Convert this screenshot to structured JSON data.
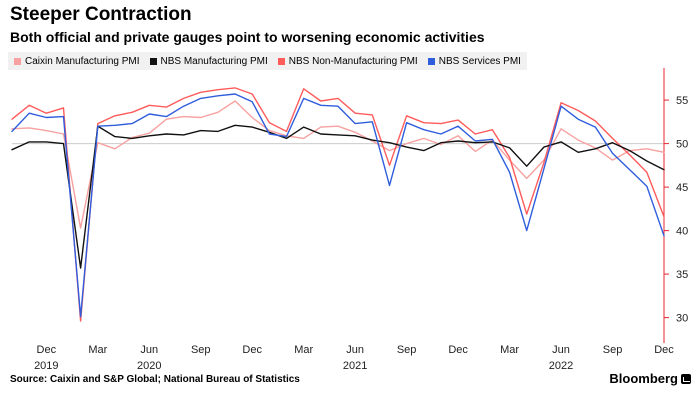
{
  "header": {
    "title": "Steeper Contraction",
    "subtitle": "Both official and private gauges point to worsening economic activities"
  },
  "footer": {
    "source": "Source: Caixin and S&P Global; National Bureau of Statistics",
    "brand": "Bloomberg"
  },
  "colors": {
    "caixin_manufacturing": "#f7a1a0",
    "nbs_manufacturing": "#111111",
    "nbs_non_manufacturing": "#ff5b5b",
    "nbs_services": "#2f5ddc",
    "axis": "#e8262f",
    "threshold_line": "#cccccc"
  },
  "chart_data": {
    "type": "line",
    "title": "Steeper Contraction",
    "subtitle": "Both official and private gauges point to worsening economic activities",
    "xlabel": "",
    "ylabel": "",
    "ylim": [
      28,
      58
    ],
    "y_ticks": [
      30,
      35,
      40,
      45,
      50,
      55
    ],
    "y_axis_position": "right",
    "grid": false,
    "legend_position": "top-left",
    "x": [
      "2019-10",
      "2019-11",
      "2019-12",
      "2020-01",
      "2020-02",
      "2020-03",
      "2020-04",
      "2020-05",
      "2020-06",
      "2020-07",
      "2020-08",
      "2020-09",
      "2020-10",
      "2020-11",
      "2020-12",
      "2021-01",
      "2021-02",
      "2021-03",
      "2021-04",
      "2021-05",
      "2021-06",
      "2021-07",
      "2021-08",
      "2021-09",
      "2021-10",
      "2021-11",
      "2021-12",
      "2022-01",
      "2022-02",
      "2022-03",
      "2022-04",
      "2022-05",
      "2022-06",
      "2022-07",
      "2022-08",
      "2022-09",
      "2022-10",
      "2022-11",
      "2022-12"
    ],
    "x_tick_labels": [
      {
        "month": "Dec",
        "year": "2019",
        "at": "2019-12"
      },
      {
        "month": "Mar",
        "year": "",
        "at": "2020-03"
      },
      {
        "month": "Jun",
        "year": "2020",
        "at": "2020-06"
      },
      {
        "month": "Sep",
        "year": "",
        "at": "2020-09"
      },
      {
        "month": "Dec",
        "year": "",
        "at": "2020-12"
      },
      {
        "month": "Mar",
        "year": "",
        "at": "2021-03"
      },
      {
        "month": "Jun",
        "year": "2021",
        "at": "2021-06"
      },
      {
        "month": "Sep",
        "year": "",
        "at": "2021-09"
      },
      {
        "month": "Dec",
        "year": "",
        "at": "2021-12"
      },
      {
        "month": "Mar",
        "year": "",
        "at": "2022-03"
      },
      {
        "month": "Jun",
        "year": "2022",
        "at": "2022-06"
      },
      {
        "month": "Sep",
        "year": "",
        "at": "2022-09"
      },
      {
        "month": "Dec",
        "year": "",
        "at": "2022-12"
      }
    ],
    "series": [
      {
        "name": "Caixin Manufacturing PMI",
        "color": "#f7a1a0",
        "values": [
          51.7,
          51.8,
          51.5,
          51.1,
          40.3,
          50.1,
          49.4,
          50.7,
          51.2,
          52.8,
          53.1,
          53.0,
          53.6,
          54.9,
          53.0,
          51.5,
          50.9,
          50.6,
          51.9,
          52.0,
          51.3,
          50.3,
          49.2,
          50.0,
          50.6,
          49.9,
          50.9,
          49.1,
          50.4,
          48.1,
          46.0,
          48.1,
          51.7,
          50.4,
          49.5,
          48.1,
          49.2,
          49.4,
          49.0
        ]
      },
      {
        "name": "NBS Manufacturing PMI",
        "color": "#111111",
        "values": [
          49.3,
          50.2,
          50.2,
          50.0,
          35.7,
          52.0,
          50.8,
          50.6,
          50.9,
          51.1,
          51.0,
          51.5,
          51.4,
          52.1,
          51.9,
          51.3,
          50.6,
          51.9,
          51.1,
          51.0,
          50.9,
          50.4,
          50.1,
          49.6,
          49.2,
          50.1,
          50.3,
          50.1,
          50.2,
          49.5,
          47.4,
          49.6,
          50.2,
          49.0,
          49.4,
          50.1,
          49.2,
          48.0,
          47.0
        ]
      },
      {
        "name": "NBS Non-Manufacturing PMI",
        "color": "#ff5b5b",
        "values": [
          52.8,
          54.4,
          53.5,
          54.1,
          29.6,
          52.3,
          53.2,
          53.6,
          54.4,
          54.2,
          55.2,
          55.9,
          56.2,
          56.4,
          55.7,
          52.4,
          51.4,
          56.3,
          54.9,
          55.2,
          53.5,
          53.3,
          47.5,
          53.2,
          52.4,
          52.3,
          52.7,
          51.1,
          51.6,
          48.4,
          41.9,
          47.8,
          54.7,
          53.8,
          52.6,
          50.6,
          48.7,
          46.7,
          41.6
        ]
      },
      {
        "name": "NBS Services PMI",
        "color": "#2f5ddc",
        "values": [
          51.4,
          53.5,
          53.0,
          53.1,
          30.1,
          52.0,
          52.1,
          52.3,
          53.4,
          53.1,
          54.3,
          55.2,
          55.5,
          55.7,
          54.8,
          51.1,
          50.8,
          55.2,
          54.4,
          54.3,
          52.3,
          52.5,
          45.2,
          52.4,
          51.6,
          51.1,
          52.0,
          50.3,
          50.5,
          46.7,
          40.0,
          47.1,
          54.3,
          52.8,
          51.9,
          48.9,
          47.0,
          45.1,
          39.4
        ]
      }
    ]
  }
}
